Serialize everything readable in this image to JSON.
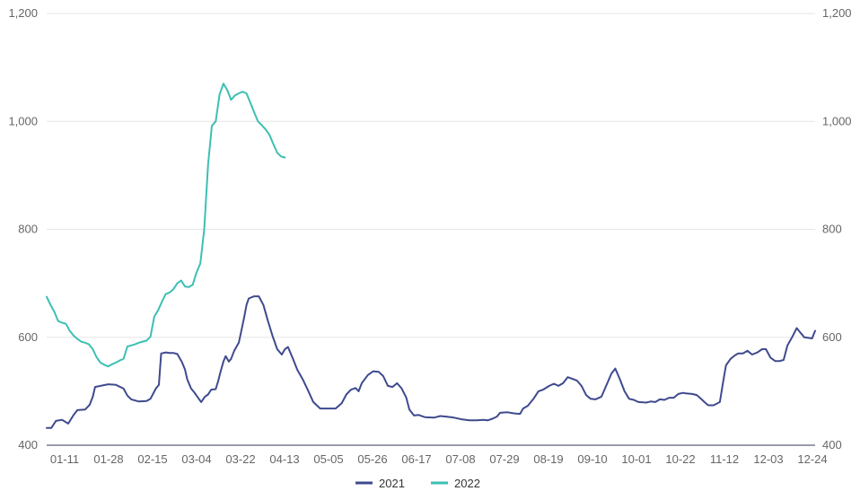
{
  "chart_data": {
    "type": "line",
    "title": "",
    "xlabel": "",
    "ylabel": "",
    "ylim": [
      400,
      1200
    ],
    "y_ticks": [
      "400",
      "600",
      "800",
      "1,000",
      "1,200"
    ],
    "y_tick_values": [
      400,
      600,
      800,
      1000,
      1200
    ],
    "x_ticks": [
      "01-11",
      "01-28",
      "02-15",
      "03-04",
      "03-22",
      "04-13",
      "05-05",
      "05-26",
      "06-17",
      "07-08",
      "07-29",
      "08-19",
      "09-10",
      "10-01",
      "10-22",
      "11-12",
      "12-03",
      "12-24"
    ],
    "x_domain": [
      0,
      100
    ],
    "grid": "horizontal",
    "legend_position": "bottom-center",
    "series": [
      {
        "name": "2021",
        "color": "#3f4a8e",
        "points": [
          [
            0,
            432
          ],
          [
            0.6,
            432
          ],
          [
            1.2,
            445
          ],
          [
            2,
            447
          ],
          [
            2.8,
            440
          ],
          [
            3.5,
            456
          ],
          [
            4,
            465
          ],
          [
            5,
            466
          ],
          [
            5.6,
            475
          ],
          [
            6,
            490
          ],
          [
            6.3,
            508
          ],
          [
            7,
            510
          ],
          [
            8,
            513
          ],
          [
            9,
            512
          ],
          [
            10,
            505
          ],
          [
            10.5,
            492
          ],
          [
            11,
            485
          ],
          [
            12,
            481
          ],
          [
            13,
            482
          ],
          [
            13.5,
            486
          ],
          [
            14.2,
            505
          ],
          [
            14.6,
            512
          ],
          [
            14.9,
            570
          ],
          [
            15.5,
            572
          ],
          [
            16,
            571
          ],
          [
            16.5,
            571
          ],
          [
            17,
            569
          ],
          [
            17.6,
            554
          ],
          [
            18,
            540
          ],
          [
            18.3,
            522
          ],
          [
            18.8,
            505
          ],
          [
            19.2,
            498
          ],
          [
            19.8,
            486
          ],
          [
            20.1,
            480
          ],
          [
            20.6,
            490
          ],
          [
            21,
            494
          ],
          [
            21.4,
            503
          ],
          [
            22,
            504
          ],
          [
            22.3,
            518
          ],
          [
            22.6,
            535
          ],
          [
            23,
            555
          ],
          [
            23.3,
            565
          ],
          [
            23.7,
            555
          ],
          [
            24,
            560
          ],
          [
            24.4,
            575
          ],
          [
            25,
            590
          ],
          [
            25.3,
            610
          ],
          [
            25.7,
            637
          ],
          [
            26,
            660
          ],
          [
            26.3,
            672
          ],
          [
            27,
            676
          ],
          [
            27.6,
            676
          ],
          [
            28.2,
            660
          ],
          [
            28.8,
            630
          ],
          [
            29.4,
            602
          ],
          [
            30,
            578
          ],
          [
            30.6,
            568
          ],
          [
            31,
            578
          ],
          [
            31.4,
            582
          ],
          [
            32,
            562
          ],
          [
            32.6,
            540
          ],
          [
            33.4,
            520
          ],
          [
            34,
            502
          ],
          [
            34.7,
            480
          ],
          [
            35.6,
            468
          ],
          [
            36.6,
            468
          ],
          [
            37.6,
            468
          ],
          [
            38.4,
            478
          ],
          [
            39,
            494
          ],
          [
            39.6,
            503
          ],
          [
            40.2,
            506
          ],
          [
            40.6,
            500
          ],
          [
            41,
            515
          ],
          [
            41.8,
            530
          ],
          [
            42.5,
            537
          ],
          [
            43.2,
            536
          ],
          [
            43.8,
            528
          ],
          [
            44.4,
            510
          ],
          [
            45,
            508
          ],
          [
            45.6,
            515
          ],
          [
            46.2,
            505
          ],
          [
            46.8,
            488
          ],
          [
            47.2,
            466
          ],
          [
            47.8,
            455
          ],
          [
            48.4,
            456
          ],
          [
            49.2,
            452
          ],
          [
            50.4,
            451
          ],
          [
            51.2,
            454
          ],
          [
            52,
            453
          ],
          [
            53,
            451
          ],
          [
            54,
            448
          ],
          [
            55,
            446
          ],
          [
            56,
            446
          ],
          [
            56.8,
            447
          ],
          [
            57.4,
            446
          ],
          [
            58,
            449
          ],
          [
            58.6,
            453
          ],
          [
            59,
            460
          ],
          [
            60,
            461
          ],
          [
            60.8,
            459
          ],
          [
            61.6,
            458
          ],
          [
            62,
            468
          ],
          [
            62.6,
            473
          ],
          [
            63.4,
            487
          ],
          [
            64,
            500
          ],
          [
            64.6,
            503
          ],
          [
            65.4,
            510
          ],
          [
            66,
            514
          ],
          [
            66.6,
            510
          ],
          [
            67.2,
            515
          ],
          [
            67.8,
            526
          ],
          [
            68.4,
            523
          ],
          [
            69,
            520
          ],
          [
            69.6,
            510
          ],
          [
            70.2,
            493
          ],
          [
            70.8,
            486
          ],
          [
            71.4,
            485
          ],
          [
            72.2,
            490
          ],
          [
            72.8,
            510
          ],
          [
            73.5,
            533
          ],
          [
            74,
            542
          ],
          [
            74.6,
            522
          ],
          [
            75.2,
            500
          ],
          [
            75.8,
            486
          ],
          [
            76.4,
            484
          ],
          [
            77,
            480
          ],
          [
            78,
            479
          ],
          [
            78.6,
            481
          ],
          [
            79.2,
            480
          ],
          [
            79.8,
            485
          ],
          [
            80.4,
            484
          ],
          [
            81,
            488
          ],
          [
            81.6,
            488
          ],
          [
            82.2,
            495
          ],
          [
            82.8,
            497
          ],
          [
            83.2,
            496
          ],
          [
            84,
            495
          ],
          [
            84.6,
            493
          ],
          [
            85,
            488
          ],
          [
            85.6,
            480
          ],
          [
            86.1,
            474
          ],
          [
            86.8,
            474
          ],
          [
            87.6,
            480
          ],
          [
            88,
            515
          ],
          [
            88.4,
            548
          ],
          [
            89,
            560
          ],
          [
            89.6,
            567
          ],
          [
            90,
            570
          ],
          [
            90.6,
            570
          ],
          [
            91.2,
            575
          ],
          [
            91.8,
            568
          ],
          [
            92.5,
            572
          ],
          [
            93.1,
            578
          ],
          [
            93.6,
            578
          ],
          [
            94.2,
            562
          ],
          [
            94.8,
            556
          ],
          [
            95.4,
            556
          ],
          [
            95.9,
            558
          ],
          [
            96.4,
            585
          ],
          [
            97,
            600
          ],
          [
            97.6,
            617
          ],
          [
            98,
            610
          ],
          [
            98.6,
            600
          ],
          [
            99.1,
            599
          ],
          [
            99.6,
            598
          ],
          [
            100,
            612
          ]
        ]
      },
      {
        "name": "2022",
        "color": "#3dbfb3",
        "points": [
          [
            0,
            675
          ],
          [
            0.5,
            660
          ],
          [
            1,
            647
          ],
          [
            1.5,
            630
          ],
          [
            2,
            627
          ],
          [
            2.5,
            625
          ],
          [
            3,
            612
          ],
          [
            3.5,
            603
          ],
          [
            4,
            597
          ],
          [
            4.5,
            592
          ],
          [
            5,
            590
          ],
          [
            5.5,
            587
          ],
          [
            6,
            578
          ],
          [
            6.5,
            563
          ],
          [
            7,
            553
          ],
          [
            7.5,
            549
          ],
          [
            8,
            546
          ],
          [
            8.5,
            550
          ],
          [
            9,
            553
          ],
          [
            9.5,
            557
          ],
          [
            10,
            560
          ],
          [
            10.5,
            583
          ],
          [
            11,
            585
          ],
          [
            11.5,
            587
          ],
          [
            12,
            590
          ],
          [
            12.5,
            592
          ],
          [
            13,
            594
          ],
          [
            13.5,
            601
          ],
          [
            14,
            638
          ],
          [
            14.5,
            650
          ],
          [
            15,
            666
          ],
          [
            15.5,
            680
          ],
          [
            16,
            683
          ],
          [
            16.5,
            689
          ],
          [
            17,
            700
          ],
          [
            17.5,
            705
          ],
          [
            18,
            694
          ],
          [
            18.5,
            693
          ],
          [
            19,
            697
          ],
          [
            19.5,
            720
          ],
          [
            20,
            737
          ],
          [
            20.5,
            800
          ],
          [
            21,
            920
          ],
          [
            21.5,
            992
          ],
          [
            22,
            1000
          ],
          [
            22.5,
            1050
          ],
          [
            23,
            1070
          ],
          [
            23.5,
            1058
          ],
          [
            24,
            1040
          ],
          [
            24.5,
            1048
          ],
          [
            25,
            1052
          ],
          [
            25.5,
            1055
          ],
          [
            26,
            1052
          ],
          [
            26.5,
            1035
          ],
          [
            27,
            1017
          ],
          [
            27.5,
            1000
          ],
          [
            28,
            993
          ],
          [
            28.5,
            985
          ],
          [
            29,
            975
          ],
          [
            29.5,
            958
          ],
          [
            30,
            942
          ],
          [
            30.5,
            935
          ],
          [
            31,
            933
          ]
        ]
      }
    ]
  }
}
